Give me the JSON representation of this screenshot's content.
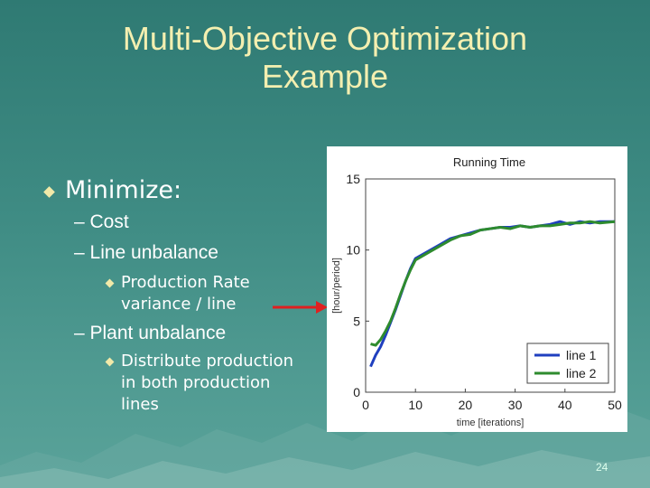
{
  "slide": {
    "title_line1": "Multi-Objective Optimization",
    "title_line2": "Example",
    "page_number": "24"
  },
  "bullets": {
    "main": "Minimize:",
    "cost": "– Cost",
    "line_unbalance": "– Line unbalance",
    "prod_rate_1": "Production Rate",
    "prod_rate_2": "variance / line",
    "plant_unbalance": "– Plant unbalance",
    "distribute_1": "Distribute production",
    "distribute_2": "in both production",
    "distribute_3": "lines"
  },
  "colors": {
    "title": "#f4efb0",
    "arrow": "#e02020",
    "line1": "#1f3fbf",
    "line2": "#2e8b2e"
  },
  "chart_data": {
    "type": "line",
    "title": "Running Time",
    "xlabel": "time [iterations]",
    "ylabel": "[hour/period]",
    "xlim": [
      0,
      50
    ],
    "ylim": [
      0,
      15
    ],
    "xticks": [
      0,
      10,
      20,
      30,
      40,
      50
    ],
    "yticks": [
      0,
      5,
      10,
      15
    ],
    "legend_position": "bottom-right",
    "series": [
      {
        "name": "line 1",
        "x": [
          1,
          2,
          3,
          4,
          5,
          6,
          7,
          8,
          9,
          10,
          11,
          13,
          15,
          17,
          19,
          21,
          23,
          25,
          27,
          29,
          31,
          33,
          35,
          37,
          39,
          41,
          43,
          45,
          47,
          50
        ],
        "y": [
          1.8,
          2.6,
          3.2,
          4.0,
          4.9,
          5.8,
          6.8,
          7.8,
          8.7,
          9.4,
          9.6,
          10.0,
          10.4,
          10.8,
          11.0,
          11.2,
          11.4,
          11.5,
          11.6,
          11.6,
          11.7,
          11.6,
          11.7,
          11.8,
          12.0,
          11.8,
          12.0,
          11.9,
          12.0,
          12.0
        ]
      },
      {
        "name": "line 2",
        "x": [
          1,
          2,
          3,
          4,
          5,
          6,
          7,
          8,
          9,
          10,
          11,
          13,
          15,
          17,
          19,
          21,
          23,
          25,
          27,
          29,
          31,
          33,
          35,
          37,
          39,
          41,
          43,
          45,
          47,
          50
        ],
        "y": [
          3.4,
          3.3,
          3.7,
          4.3,
          5.0,
          5.9,
          6.9,
          7.8,
          8.6,
          9.3,
          9.5,
          9.9,
          10.3,
          10.7,
          11.0,
          11.1,
          11.4,
          11.5,
          11.6,
          11.5,
          11.7,
          11.6,
          11.7,
          11.7,
          11.8,
          11.9,
          11.9,
          12.0,
          11.9,
          12.0
        ]
      }
    ]
  }
}
